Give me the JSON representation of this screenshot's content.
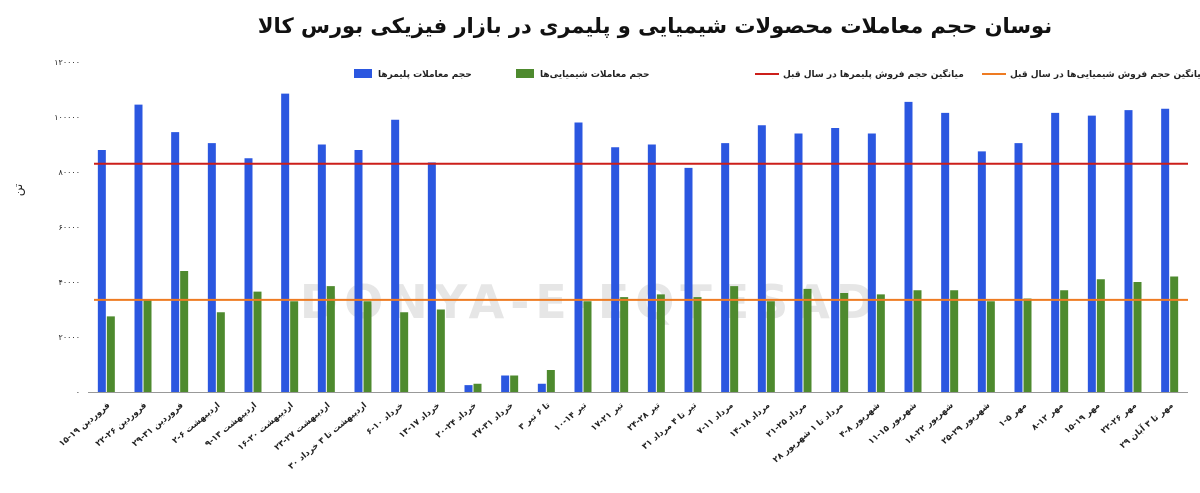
{
  "chart_data": {
    "type": "bar",
    "title": "نوسان حجم معاملات محصولات شیمیایی و پلیمری در بازار فیزیکی بورس کالا",
    "ylabel": "تن",
    "ylim": [
      0,
      120000
    ],
    "yticks": [
      "۰",
      "۲۰۰۰۰",
      "۴۰۰۰۰",
      "۶۰۰۰۰",
      "۸۰۰۰۰",
      "۱۰۰۰۰۰",
      "۱۲۰۰۰۰"
    ],
    "ytick_values": [
      0,
      20000,
      40000,
      60000,
      80000,
      100000,
      120000
    ],
    "grid": false,
    "legend_position": "top",
    "categories": [
      "۱۵-۱۹ فروردین",
      "۲۲-۲۶ فروردین",
      "۲۹-۳۱ فروردین",
      "۲-۶ اردیبهشت",
      "۹-۱۳ اردیبهشت",
      "۱۶-۲۰ اردیبهشت",
      "۲۳-۲۷ اردیبهشت",
      "۳۰ اردیبهشت تا ۳ خرداد",
      "۶-۱۰ خرداد",
      "۱۳-۱۷ خرداد",
      "۲۰-۲۴ خرداد",
      "۲۷-۳۱ خرداد",
      "۳ تا ۶ تیر",
      "۱۰-۱۴ تیر",
      "۱۷-۲۱ تیر",
      "۲۴-۲۸ تیر",
      "۳۱ تیر تا ۴ مرداد",
      "۷-۱۱ مرداد",
      "۱۴-۱۸ مرداد",
      "۲۱-۲۵ مرداد",
      "۲۸ مرداد تا ۱ شهریور",
      "۴-۸ شهریور",
      "۱۱-۱۵ شهریور",
      "۱۸-۲۲ شهریور",
      "۲۵-۲۹ شهریور",
      "۱-۵ مهر",
      "۸-۱۲ مهر",
      "۱۵-۱۹ مهر",
      "۲۲-۲۶ مهر",
      "۲۹ مهر تا ۳ آبان"
    ],
    "series": [
      {
        "name": "حجم معاملات پلیمرها",
        "color": "#2b57e0",
        "values": [
          88000,
          104500,
          94500,
          90500,
          85000,
          108500,
          90000,
          88000,
          99000,
          83500,
          2500,
          6000,
          3000,
          98000,
          89000,
          90000,
          81500,
          90500,
          97000,
          94000,
          96000,
          94000,
          105500,
          101500,
          87500,
          90500,
          101500,
          100500,
          102500,
          103000
        ]
      },
      {
        "name": "حجم معاملات شیمیایی‌ها",
        "color": "#4e8a2e",
        "values": [
          27500,
          33500,
          44000,
          29000,
          36500,
          33000,
          38500,
          33000,
          29000,
          30000,
          3000,
          6000,
          8000,
          33000,
          34500,
          35500,
          34500,
          38500,
          33000,
          37500,
          36000,
          35500,
          37000,
          37000,
          33000,
          34000,
          37000,
          41000,
          40000,
          42000
        ]
      },
      {
        "name": "میانگین حجم فروش پلیمرها در سال قبل",
        "color": "#cc1f1a",
        "type": "line",
        "value": 83000
      },
      {
        "name": "میانگین حجم فروش شیمیایی‌ها در سال قبل",
        "color": "#ee7b22",
        "type": "line",
        "value": 33500
      }
    ],
    "watermark": "DONYA-E-EQTESAD"
  }
}
